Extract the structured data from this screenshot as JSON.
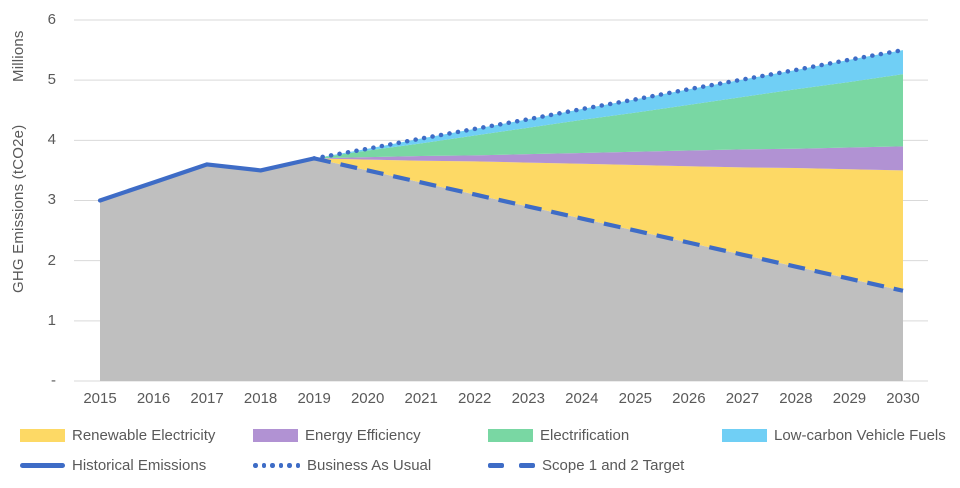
{
  "y_axis": {
    "units_label": "Millions",
    "title": "GHG Emissions (tCO2e)",
    "ticks": [
      {
        "label": "6",
        "value": 6
      },
      {
        "label": "5",
        "value": 5
      },
      {
        "label": "4",
        "value": 4
      },
      {
        "label": "3",
        "value": 3
      },
      {
        "label": "2",
        "value": 2
      },
      {
        "label": "1",
        "value": 1
      },
      {
        "label": "-",
        "value": 0
      }
    ]
  },
  "x_axis": {
    "years": [
      2015,
      2016,
      2017,
      2018,
      2019,
      2020,
      2021,
      2022,
      2023,
      2024,
      2025,
      2026,
      2027,
      2028,
      2029,
      2030
    ]
  },
  "colors": {
    "renewable_electricity": "#FDD965",
    "energy_efficiency": "#B192D3",
    "electrification": "#79D7A3",
    "low_carbon_vehicle_fuels": "#70CFF5",
    "historical_gray": "#BFBFBF",
    "line_blue": "#3E6CC6",
    "gridline": "#D9D9D9",
    "text": "#595959"
  },
  "chart_data": {
    "type": "area",
    "title": "",
    "ylabel": "GHG Emissions (tCO2e)",
    "y_units": "Millions",
    "ylim": [
      0,
      6
    ],
    "grid": true,
    "legend_position": "bottom",
    "historical": {
      "name": "Historical Emissions",
      "years": [
        2015,
        2016,
        2017,
        2018,
        2019
      ],
      "values": [
        3.0,
        3.3,
        3.6,
        3.5,
        3.7
      ]
    },
    "projection_years": [
      2019,
      2020,
      2021,
      2022,
      2023,
      2024,
      2025,
      2026,
      2027,
      2028,
      2029,
      2030
    ],
    "business_as_usual": [
      3.7,
      3.86,
      4.03,
      4.19,
      4.35,
      4.52,
      4.68,
      4.85,
      5.01,
      5.17,
      5.34,
      5.5
    ],
    "scope_1_2_target": [
      3.7,
      3.5,
      3.3,
      3.1,
      2.9,
      2.7,
      2.5,
      2.3,
      2.1,
      1.9,
      1.7,
      1.5
    ],
    "wedges": [
      {
        "name": "Renewable Electricity",
        "color_key": "renewable_electricity",
        "top_boundary": [
          3.7,
          3.68,
          3.66,
          3.65,
          3.63,
          3.61,
          3.59,
          3.57,
          3.55,
          3.54,
          3.52,
          3.5
        ]
      },
      {
        "name": "Energy Efficiency",
        "color_key": "energy_efficiency",
        "top_boundary": [
          3.7,
          3.72,
          3.74,
          3.75,
          3.77,
          3.79,
          3.81,
          3.83,
          3.85,
          3.86,
          3.88,
          3.9
        ]
      },
      {
        "name": "Electrification",
        "color_key": "electrification",
        "top_boundary": [
          3.7,
          3.83,
          3.95,
          4.08,
          4.21,
          4.34,
          4.46,
          4.59,
          4.72,
          4.85,
          4.97,
          5.1
        ]
      },
      {
        "name": "Low-carbon Vehicle Fuels",
        "color_key": "low_carbon_vehicle_fuels",
        "top_boundary": [
          3.7,
          3.86,
          4.03,
          4.19,
          4.35,
          4.52,
          4.68,
          4.85,
          5.01,
          5.17,
          5.34,
          5.5
        ]
      }
    ]
  },
  "legend": {
    "row1": [
      {
        "label": "Renewable Electricity",
        "swatch": "area",
        "color_key": "renewable_electricity"
      },
      {
        "label": "Energy Efficiency",
        "swatch": "area",
        "color_key": "energy_efficiency"
      },
      {
        "label": "Electrification",
        "swatch": "area",
        "color_key": "electrification"
      },
      {
        "label": "Low-carbon Vehicle Fuels",
        "swatch": "area",
        "color_key": "low_carbon_vehicle_fuels"
      }
    ],
    "row2": [
      {
        "label": "Historical Emissions",
        "swatch": "line-solid",
        "color_key": "line_blue"
      },
      {
        "label": "Business As Usual",
        "swatch": "line-dotted",
        "color_key": "line_blue"
      },
      {
        "label": "Scope 1 and 2 Target",
        "swatch": "line-dashed",
        "color_key": "line_blue"
      }
    ]
  }
}
